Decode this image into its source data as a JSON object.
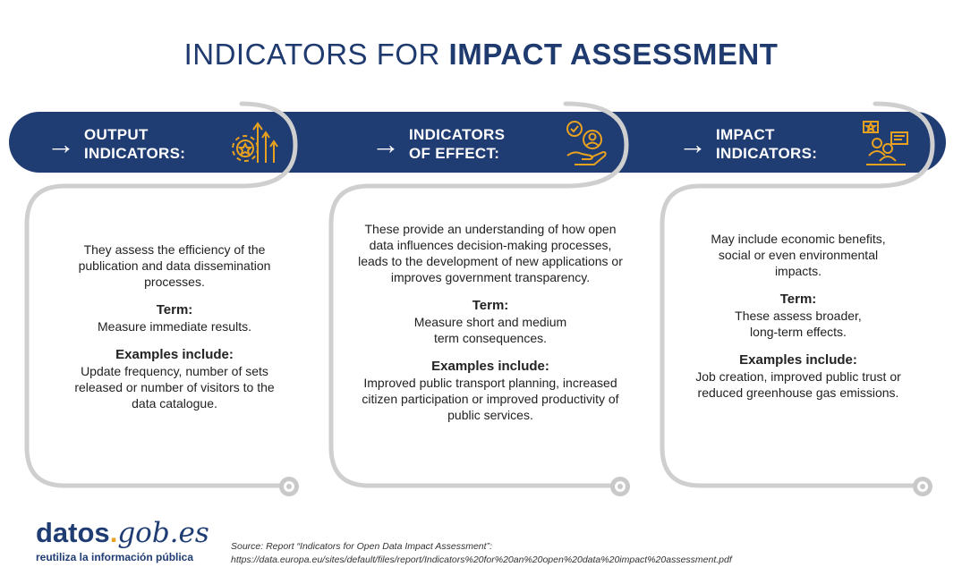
{
  "title": {
    "part1": "INDICATORS FOR ",
    "part2": "IMPACT ASSESSMENT"
  },
  "columns": [
    {
      "arrow": "→",
      "label_line1": "OUTPUT",
      "label_line2": "INDICATORS:",
      "icon": "gear-growth-icon",
      "description": "They assess the efficiency of the publication and data dissemination processes.",
      "term_heading": "Term:",
      "term_text": "Measure immediate results.",
      "examples_heading": "Examples include:",
      "examples_text": "Update frequency, number of sets released or number of visitors to the data catalogue."
    },
    {
      "arrow": "→",
      "label_line1": "INDICATORS",
      "label_line2": "OF EFFECT:",
      "icon": "hand-person-check-icon",
      "description": "These provide an understanding of how open data influences decision-making processes, leads to the development of new applications or improves government transparency.",
      "term_heading": "Term:",
      "term_text": "Measure short and medium term consequences.",
      "examples_heading": "Examples include:",
      "examples_text": "Improved public transport planning, increased citizen participation or improved productivity of public services."
    },
    {
      "arrow": "→",
      "label_line1": "IMPACT",
      "label_line2": "INDICATORS:",
      "icon": "people-feedback-icon",
      "description": "May include economic benefits, social or even environmental impacts.",
      "term_heading": "Term:",
      "term_text": "These assess broader, long-term effects.",
      "examples_heading": "Examples include:",
      "examples_text": "Job creation, improved public trust or reduced greenhouse gas emissions."
    }
  ],
  "logo": {
    "brand_a": "datos",
    "brand_dot": ".",
    "brand_b": "gob",
    "brand_c": ".es",
    "tagline": "reutiliza la información pública"
  },
  "source": {
    "line1": "Source: Report “Indicators for Open Data Impact Assessment”:",
    "line2": "https://data.europa.eu/sites/default/files/report/Indicators%20for%20an%20open%20data%20impact%20assessment.pdf"
  },
  "colors": {
    "navy": "#1f3c73",
    "gold": "#e9a21f",
    "connector_gray": "#c9c9c9"
  }
}
